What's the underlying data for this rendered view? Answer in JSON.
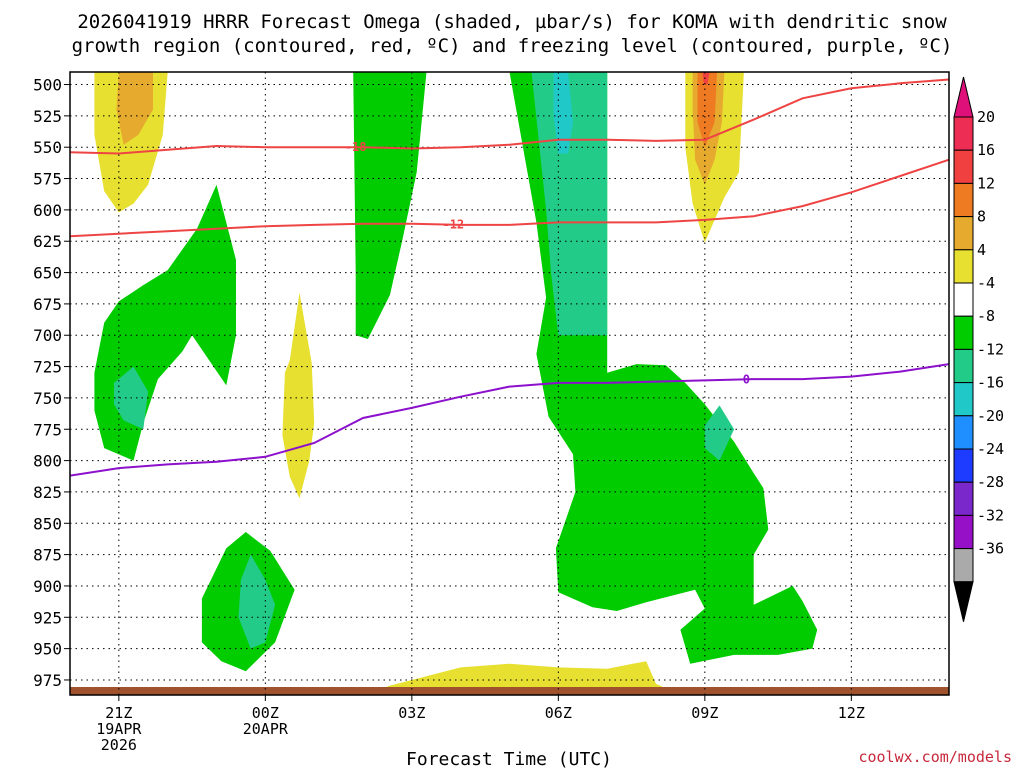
{
  "chart_data": {
    "type": "contour",
    "title_line1": "2026041919 HRRR Forecast Omega (shaded, µbar/s) for KOMA with dendritic snow",
    "title_line2": "growth region (contoured, red, ºC) and freezing level (contoured, purple, ºC)",
    "xlabel": "Forecast Time (UTC)",
    "credit": "coolwx.com/models",
    "y_ticks": [
      "500",
      "525",
      "550",
      "575",
      "600",
      "625",
      "650",
      "675",
      "700",
      "725",
      "750",
      "775",
      "800",
      "825",
      "850",
      "875",
      "900",
      "925",
      "950",
      "975"
    ],
    "ylim": [
      490,
      987
    ],
    "xlim": [
      -1,
      17
    ],
    "x_ticks": [
      {
        "h": 0,
        "l1": "21Z",
        "l2": "19APR",
        "l3": "2026"
      },
      {
        "h": 3,
        "l1": "00Z",
        "l2": "20APR",
        "l3": ""
      },
      {
        "h": 6,
        "l1": "03Z",
        "l2": "",
        "l3": ""
      },
      {
        "h": 9,
        "l1": "06Z",
        "l2": "",
        "l3": ""
      },
      {
        "h": 12,
        "l1": "09Z",
        "l2": "",
        "l3": ""
      },
      {
        "h": 15,
        "l1": "12Z",
        "l2": "",
        "l3": ""
      }
    ],
    "colorbar": {
      "labels": [
        "20",
        "16",
        "12",
        "8",
        "4",
        "-4",
        "-8",
        "-12",
        "-16",
        "-20",
        "-24",
        "-28",
        "-32",
        "-36"
      ],
      "colors": [
        "#ee2d55",
        "#f04040",
        "#ee7a22",
        "#e6aa2e",
        "#e8e030",
        "#ffffff",
        "#00cc00",
        "#22cc88",
        "#20c8c8",
        "#1f8fff",
        "#1e3cff",
        "#7a28cc",
        "#9610c8",
        "#aaaaaa"
      ],
      "cap_top": "#e0107a",
      "cap_bottom": "#000000"
    },
    "contours": [
      {
        "name": "red",
        "level": "-18",
        "color": "#ee4444",
        "label_at": 4.85,
        "points": [
          [
            -1,
            554
          ],
          [
            0,
            555
          ],
          [
            1,
            552
          ],
          [
            2,
            549
          ],
          [
            3,
            550
          ],
          [
            4,
            550
          ],
          [
            5,
            550
          ],
          [
            6,
            551
          ],
          [
            7,
            550
          ],
          [
            8,
            548
          ],
          [
            9,
            544
          ],
          [
            10,
            544
          ],
          [
            11,
            545
          ],
          [
            12,
            544
          ],
          [
            13,
            528
          ],
          [
            14,
            511
          ],
          [
            15,
            503
          ],
          [
            16,
            499
          ],
          [
            17,
            496
          ]
        ]
      },
      {
        "name": "red",
        "level": "-12",
        "color": "#ee4444",
        "label_at": 6.85,
        "points": [
          [
            -1,
            621
          ],
          [
            0,
            619
          ],
          [
            1,
            617
          ],
          [
            2,
            615
          ],
          [
            3,
            613
          ],
          [
            4,
            612
          ],
          [
            5,
            611
          ],
          [
            6,
            611
          ],
          [
            7,
            612
          ],
          [
            8,
            612
          ],
          [
            9,
            610
          ],
          [
            10,
            610
          ],
          [
            11,
            610
          ],
          [
            12,
            608
          ],
          [
            13,
            605
          ],
          [
            14,
            597
          ],
          [
            15,
            586
          ],
          [
            16,
            573
          ],
          [
            17,
            560
          ]
        ]
      },
      {
        "name": "purple",
        "level": "0",
        "color": "#8c10cc",
        "label_at": 12.85,
        "points": [
          [
            -1,
            812
          ],
          [
            0,
            806
          ],
          [
            1,
            803
          ],
          [
            2,
            801
          ],
          [
            3,
            797
          ],
          [
            4,
            786
          ],
          [
            5,
            766
          ],
          [
            6,
            758
          ],
          [
            7,
            749
          ],
          [
            8,
            741
          ],
          [
            9,
            738
          ],
          [
            10,
            738
          ],
          [
            11,
            737
          ],
          [
            12,
            736
          ],
          [
            13,
            735
          ],
          [
            14,
            735
          ],
          [
            15,
            733
          ],
          [
            16,
            729
          ],
          [
            17,
            723
          ]
        ]
      }
    ],
    "shaded": [
      {
        "value": "4",
        "color": "#e8e030",
        "points": [
          [
            -0.5,
            490
          ],
          [
            1.0,
            490
          ],
          [
            0.9,
            540
          ],
          [
            0.6,
            580
          ],
          [
            0.3,
            595
          ],
          [
            0,
            602
          ],
          [
            -0.3,
            585
          ],
          [
            -0.5,
            540
          ]
        ]
      },
      {
        "value": "8",
        "color": "#e6aa2e",
        "points": [
          [
            0,
            490
          ],
          [
            0.7,
            490
          ],
          [
            0.7,
            520
          ],
          [
            0.4,
            540
          ],
          [
            0.1,
            548
          ],
          [
            -0.05,
            520
          ]
        ]
      },
      {
        "value": "4",
        "color": "#e8e030",
        "points": [
          [
            3.5,
            720
          ],
          [
            3.7,
            666
          ],
          [
            3.95,
            722
          ],
          [
            4.0,
            770
          ],
          [
            3.9,
            800
          ],
          [
            3.7,
            830
          ],
          [
            3.5,
            813
          ],
          [
            3.35,
            780
          ],
          [
            3.4,
            730
          ]
        ]
      },
      {
        "value": "4",
        "color": "#e8e030",
        "points": [
          [
            11.6,
            490
          ],
          [
            12.8,
            490
          ],
          [
            12.7,
            570
          ],
          [
            12.4,
            590
          ],
          [
            12.0,
            626
          ],
          [
            11.75,
            595
          ],
          [
            11.6,
            550
          ]
        ]
      },
      {
        "value": "8",
        "color": "#e6aa2e",
        "points": [
          [
            11.75,
            490
          ],
          [
            12.4,
            490
          ],
          [
            12.35,
            530
          ],
          [
            12.2,
            560
          ],
          [
            12.0,
            580
          ],
          [
            11.8,
            560
          ],
          [
            11.75,
            520
          ]
        ]
      },
      {
        "value": "12",
        "color": "#ee7a22",
        "points": [
          [
            11.85,
            490
          ],
          [
            12.25,
            490
          ],
          [
            12.2,
            530
          ],
          [
            12.0,
            550
          ],
          [
            11.85,
            530
          ]
        ]
      },
      {
        "value": "16",
        "color": "#f04040",
        "points": [
          [
            11.95,
            490
          ],
          [
            12.1,
            490
          ],
          [
            12.05,
            500
          ],
          [
            11.98,
            500
          ]
        ]
      },
      {
        "value": "4",
        "color": "#e8e030",
        "points": [
          [
            6.0,
            975
          ],
          [
            7.0,
            965
          ],
          [
            8.0,
            962
          ],
          [
            9.0,
            965
          ],
          [
            10.0,
            966
          ],
          [
            10.8,
            960
          ],
          [
            11.0,
            978
          ],
          [
            11.5,
            987
          ],
          [
            5.5,
            987
          ],
          [
            5.5,
            980
          ]
        ]
      },
      {
        "value": "-4",
        "color": "#00cc00",
        "points": [
          [
            -0.5,
            730
          ],
          [
            -0.3,
            690
          ],
          [
            0.0,
            673
          ],
          [
            0.5,
            660
          ],
          [
            1.0,
            648
          ],
          [
            1.6,
            615
          ],
          [
            2.0,
            580
          ],
          [
            2.4,
            640
          ],
          [
            2.4,
            700
          ],
          [
            2.2,
            740
          ],
          [
            1.5,
            700
          ],
          [
            1.3,
            713
          ],
          [
            0.8,
            735
          ],
          [
            0.5,
            770
          ],
          [
            0.3,
            800
          ],
          [
            -0.3,
            790
          ],
          [
            -0.5,
            760
          ]
        ]
      },
      {
        "value": "-8",
        "color": "#22cc88",
        "points": [
          [
            -0.1,
            738
          ],
          [
            0.3,
            725
          ],
          [
            0.6,
            745
          ],
          [
            0.5,
            775
          ],
          [
            0.1,
            768
          ],
          [
            -0.1,
            755
          ]
        ]
      },
      {
        "value": "-4",
        "color": "#00cc00",
        "points": [
          [
            1.7,
            910
          ],
          [
            2.2,
            870
          ],
          [
            2.6,
            857
          ],
          [
            3.1,
            872
          ],
          [
            3.6,
            903
          ],
          [
            3.2,
            945
          ],
          [
            2.6,
            968
          ],
          [
            2.1,
            960
          ],
          [
            1.7,
            945
          ]
        ]
      },
      {
        "value": "-8",
        "color": "#22cc88",
        "points": [
          [
            2.5,
            895
          ],
          [
            2.7,
            875
          ],
          [
            3.0,
            895
          ],
          [
            3.2,
            915
          ],
          [
            3.0,
            945
          ],
          [
            2.7,
            950
          ],
          [
            2.45,
            925
          ]
        ]
      },
      {
        "value": "-4",
        "color": "#00cc00",
        "points": [
          [
            4.8,
            490
          ],
          [
            6.3,
            490
          ],
          [
            6.1,
            570
          ],
          [
            5.8,
            625
          ],
          [
            5.55,
            668
          ],
          [
            5.1,
            703
          ],
          [
            4.85,
            700
          ],
          [
            4.85,
            650
          ]
        ]
      },
      {
        "value": "-4",
        "color": "#00cc00",
        "points": [
          [
            8.0,
            490
          ],
          [
            10.0,
            490
          ],
          [
            10.0,
            560
          ],
          [
            10.0,
            650
          ],
          [
            10.0,
            730
          ],
          [
            10.6,
            723
          ],
          [
            11.2,
            724
          ],
          [
            11.6,
            738
          ],
          [
            12.0,
            755
          ],
          [
            12.6,
            785
          ],
          [
            13.0,
            810
          ],
          [
            13.2,
            822
          ],
          [
            13.3,
            855
          ],
          [
            13.0,
            875
          ],
          [
            13.0,
            915
          ],
          [
            13.8,
            900
          ],
          [
            14.0,
            912
          ],
          [
            14.3,
            935
          ],
          [
            14.2,
            950
          ],
          [
            13.5,
            955
          ],
          [
            12.6,
            955
          ],
          [
            11.7,
            962
          ],
          [
            11.5,
            935
          ],
          [
            12.0,
            918
          ],
          [
            11.8,
            903
          ],
          [
            10.8,
            913
          ],
          [
            10.2,
            920
          ],
          [
            9.7,
            917
          ],
          [
            9.0,
            905
          ],
          [
            8.95,
            870
          ],
          [
            9.35,
            825
          ],
          [
            9.3,
            795
          ],
          [
            8.8,
            765
          ],
          [
            8.55,
            715
          ],
          [
            8.75,
            670
          ],
          [
            8.55,
            610
          ]
        ]
      },
      {
        "value": "-8",
        "color": "#22cc88",
        "points": [
          [
            8.45,
            490
          ],
          [
            10.0,
            490
          ],
          [
            10.0,
            700
          ],
          [
            9.0,
            700
          ],
          [
            8.85,
            650
          ],
          [
            8.75,
            600
          ]
        ]
      },
      {
        "value": "-12",
        "color": "#20c8c8",
        "points": [
          [
            8.9,
            490
          ],
          [
            9.2,
            490
          ],
          [
            9.3,
            530
          ],
          [
            9.2,
            555
          ],
          [
            9.0,
            555
          ],
          [
            8.9,
            525
          ]
        ]
      },
      {
        "value": "-8",
        "color": "#22cc88",
        "points": [
          [
            12.0,
            772
          ],
          [
            12.3,
            756
          ],
          [
            12.6,
            775
          ],
          [
            12.3,
            800
          ],
          [
            12.0,
            790
          ]
        ]
      }
    ]
  }
}
